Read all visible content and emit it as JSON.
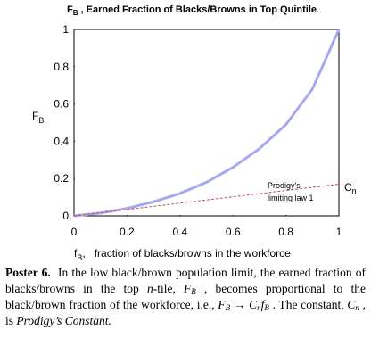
{
  "chart_data": {
    "type": "line",
    "title": {
      "main": "F",
      "sub": "B",
      "rest": " , Earned Fraction of Blacks/Browns in Top Quintile"
    },
    "y_label": {
      "main": "F",
      "sub": "B"
    },
    "x_label": {
      "main": "f",
      "sub": "B",
      "rest": ",   fraction of blacks/browns in the workforce"
    },
    "x": [
      0,
      0.1,
      0.2,
      0.3,
      0.4,
      0.5,
      0.6,
      0.7,
      0.8,
      0.9,
      1
    ],
    "series": [
      {
        "color": "#a8a8f0",
        "values": [
          0,
          0.015,
          0.04,
          0.075,
          0.12,
          0.18,
          0.26,
          0.36,
          0.49,
          0.68,
          1
        ]
      },
      {
        "color": "#c05050",
        "dashed": true,
        "values": [
          0,
          0.017,
          0.034,
          0.051,
          0.068,
          0.085,
          0.102,
          0.119,
          0.136,
          0.153,
          0.17
        ]
      }
    ],
    "xlim": [
      0,
      1
    ],
    "ylim": [
      0,
      1
    ],
    "xticks": [
      0,
      0.2,
      0.4,
      0.6,
      0.8,
      1
    ],
    "yticks": [
      0,
      0.2,
      0.4,
      0.6,
      0.8,
      1
    ],
    "annotation_lines": [
      "Prodigy's",
      "limiting law 1"
    ],
    "annotation_c": {
      "main": "C",
      "sub": "n"
    }
  },
  "caption": [
    "Poster 6.",
    "  In the low black/brown population limit, the earned fraction of blacks/browns in the top ",
    "n",
    "-tile, ",
    "F",
    "B",
    " , becomes proportional to the black/brown fraction of the workforce, i.e., ",
    "F",
    "B",
    " → ",
    "C",
    "n",
    "f",
    "B",
    " . The constant, ",
    "C",
    "n",
    " , is ",
    "Prodigy’s Constant."
  ]
}
